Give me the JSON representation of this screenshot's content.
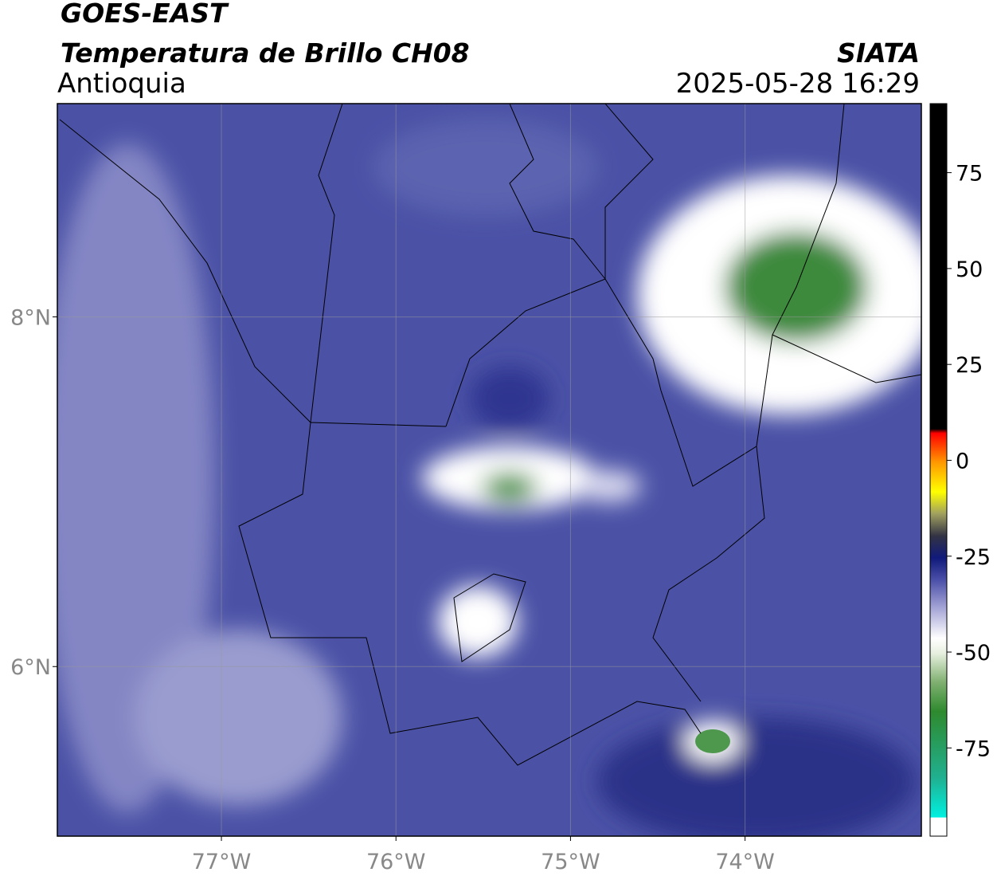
{
  "header": {
    "title": "GOES-EAST",
    "subtitle": "Temperatura de Brillo CH08",
    "region": "Antioquia",
    "source": "SIATA",
    "timestamp": "2025-05-28 16:29"
  },
  "map": {
    "xlim": [
      -77.94,
      -72.99
    ],
    "ylim": [
      5.03,
      9.22
    ],
    "xticks": [
      {
        "value": -77,
        "label": "77°W"
      },
      {
        "value": -76,
        "label": "76°W"
      },
      {
        "value": -75,
        "label": "75°W"
      },
      {
        "value": -74,
        "label": "74°W"
      }
    ],
    "yticks": [
      {
        "value": 8,
        "label": "8°N"
      },
      {
        "value": 6,
        "label": "6°N"
      }
    ],
    "grid": true
  },
  "colorbar": {
    "lim": [
      -98,
      93
    ],
    "ticks": [
      75,
      50,
      25,
      0,
      -25,
      -50,
      -75
    ]
  }
}
